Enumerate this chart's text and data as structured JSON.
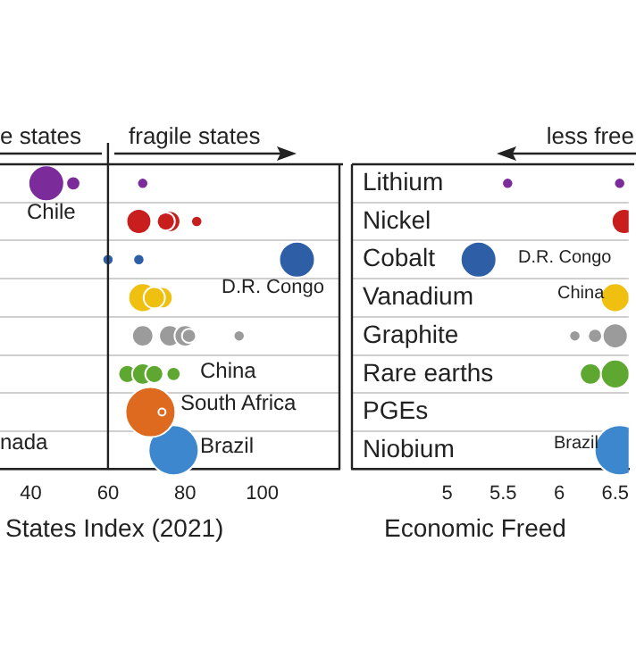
{
  "chart_data": [
    {
      "type": "bubble",
      "orientation": "horizontal",
      "categories": [
        "Lithium",
        "Nickel",
        "Cobalt",
        "Vanadium",
        "Graphite",
        "Rare earths",
        "PGEs",
        "Niobium"
      ],
      "tick_labels": "x",
      "xlabel": "States Index (2021)",
      "xlim": [
        32,
        120
      ],
      "xticks": [
        40,
        60,
        80,
        100
      ],
      "grid": "y",
      "ref_lines": [
        {
          "axis": "x",
          "value": 60
        }
      ],
      "annotations": [
        "e states",
        "fragile states",
        "Chile",
        "D.R. Congo",
        "China",
        "South Africa",
        "Brazil",
        "nada"
      ],
      "series": [
        {
          "color": "#7b2b9a",
          "x": [
            "Lithium",
            "Lithium",
            "Lithium"
          ],
          "values": [
            44,
            51,
            69
          ],
          "sizes": [
            0.51,
            0.08,
            0.05
          ]
        },
        {
          "color": "#c81e1e",
          "x": [
            "Nickel",
            "Nickel",
            "Nickel",
            "Nickel"
          ],
          "values": [
            68,
            76,
            75,
            83
          ],
          "sizes": [
            0.25,
            0.18,
            0.13,
            0.05
          ]
        },
        {
          "color": "#2e5fa6",
          "x": [
            "Cobalt",
            "Cobalt",
            "Cobalt"
          ],
          "values": [
            60,
            68,
            109
          ],
          "sizes": [
            0.05,
            0.05,
            0.51
          ]
        },
        {
          "color": "#f0c010",
          "x": [
            "Vanadium",
            "Vanadium",
            "Vanadium"
          ],
          "values": [
            69,
            74,
            72
          ],
          "sizes": [
            0.33,
            0.18,
            0.18
          ]
        },
        {
          "color": "#9b9b9b",
          "x": [
            "Graphite",
            "Graphite",
            "Graphite",
            "Graphite",
            "Graphite"
          ],
          "values": [
            69,
            76,
            80,
            81,
            94
          ],
          "sizes": [
            0.18,
            0.18,
            0.18,
            0.08,
            0.05
          ]
        },
        {
          "color": "#5ea831",
          "x": [
            "Rare earths",
            "Rare earths",
            "Rare earths",
            "Rare earths"
          ],
          "values": [
            65,
            69,
            72,
            77
          ],
          "sizes": [
            0.13,
            0.18,
            0.13,
            0.08
          ]
        },
        {
          "color": "#dd6a1f",
          "x": [
            "PGEs",
            "PGEs"
          ],
          "values": [
            71,
            74
          ],
          "sizes": [
            1,
            0.02
          ]
        },
        {
          "color": "#3d87cf",
          "x": [
            "Niobium"
          ],
          "values": [
            77
          ],
          "sizes": [
            1
          ]
        }
      ]
    },
    {
      "type": "bubble",
      "orientation": "horizontal",
      "categories": [
        "Lithium",
        "Nickel",
        "Cobalt",
        "Vanadium",
        "Graphite",
        "Rare earths",
        "PGEs",
        "Niobium"
      ],
      "xlabel": "Economic Freed",
      "xlim": [
        4.15,
        6.62
      ],
      "xticks": [
        5,
        5.5,
        6,
        6.5
      ],
      "grid": "y",
      "annotations": [
        "less free",
        "D.R. Congo",
        "China",
        "Brazil"
      ],
      "series": [
        {
          "color": "#7b2b9a",
          "x": [
            "Lithium",
            "Lithium"
          ],
          "values": [
            5.54,
            6.54
          ],
          "sizes": [
            0.05,
            0.05
          ]
        },
        {
          "color": "#c81e1e",
          "x": [
            "Nickel"
          ],
          "values": [
            6.58
          ],
          "sizes": [
            0.25
          ]
        },
        {
          "color": "#2e5fa6",
          "x": [
            "Cobalt"
          ],
          "values": [
            5.28
          ],
          "sizes": [
            0.51
          ]
        },
        {
          "color": "#f0c010",
          "x": [
            "Vanadium"
          ],
          "values": [
            6.5
          ],
          "sizes": [
            0.33
          ]
        },
        {
          "color": "#9b9b9b",
          "x": [
            "Graphite",
            "Graphite",
            "Graphite"
          ],
          "values": [
            6.14,
            6.32,
            6.5
          ],
          "sizes": [
            0.05,
            0.08,
            0.25
          ]
        },
        {
          "color": "#5ea831",
          "x": [
            "Rare earths",
            "Rare earths"
          ],
          "values": [
            6.28,
            6.5
          ],
          "sizes": [
            0.18,
            0.33
          ]
        },
        {
          "color": "#3d87cf",
          "x": [
            "Niobium"
          ],
          "values": [
            6.54
          ],
          "sizes": [
            1
          ]
        }
      ]
    }
  ]
}
